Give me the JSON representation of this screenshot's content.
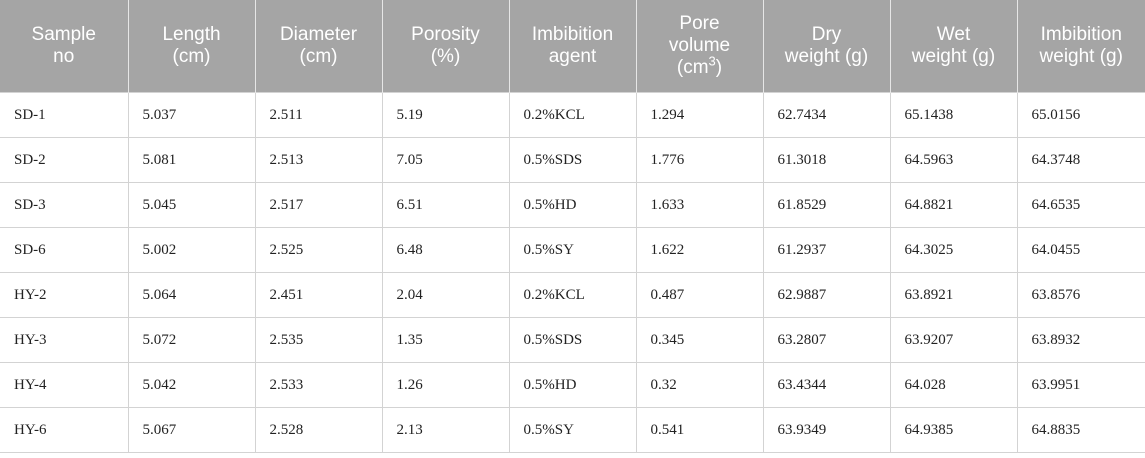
{
  "table": {
    "header": [
      [
        "Sample",
        "no"
      ],
      [
        "Length",
        "(cm)"
      ],
      [
        "Diameter",
        "(cm)"
      ],
      [
        "Porosity",
        "(%)"
      ],
      [
        "Imbibition",
        "agent"
      ],
      [
        "Pore",
        "volume",
        [
          "(cm",
          {
            "sup": "3"
          },
          ")"
        ]
      ],
      [
        "Dry",
        "weight (g)"
      ],
      [
        "Wet",
        "weight (g)"
      ],
      [
        "Imbibition",
        "weight (g)"
      ]
    ],
    "rows": [
      [
        "SD-1",
        "5.037",
        "2.511",
        "5.19",
        "0.2%KCL",
        "1.294",
        "62.7434",
        "65.1438",
        "65.0156"
      ],
      [
        "SD-2",
        "5.081",
        "2.513",
        "7.05",
        "0.5%SDS",
        "1.776",
        "61.3018",
        "64.5963",
        "64.3748"
      ],
      [
        "SD-3",
        "5.045",
        "2.517",
        "6.51",
        "0.5%HD",
        "1.633",
        "61.8529",
        "64.8821",
        "64.6535"
      ],
      [
        "SD-6",
        "5.002",
        "2.525",
        "6.48",
        "0.5%SY",
        "1.622",
        "61.2937",
        "64.3025",
        "64.0455"
      ],
      [
        "HY-2",
        "5.064",
        "2.451",
        "2.04",
        "0.2%KCL",
        "0.487",
        "62.9887",
        "63.8921",
        "63.8576"
      ],
      [
        "HY-3",
        "5.072",
        "2.535",
        "1.35",
        "0.5%SDS",
        "0.345",
        "63.2807",
        "63.9207",
        "63.8932"
      ],
      [
        "HY-4",
        "5.042",
        "2.533",
        "1.26",
        "0.5%HD",
        "0.32",
        "63.4344",
        "64.028",
        "63.9951"
      ],
      [
        "HY-6",
        "5.067",
        "2.528",
        "2.13",
        "0.5%SY",
        "0.541",
        "63.9349",
        "64.9385",
        "64.8835"
      ]
    ]
  }
}
